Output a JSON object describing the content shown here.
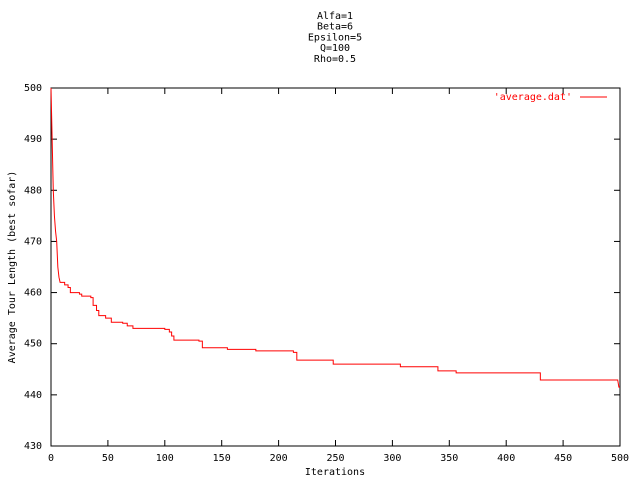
{
  "chart_data": {
    "type": "line",
    "title": [
      "Alfa=1",
      "Beta=6",
      "Epsilon=5",
      "Q=100",
      "Rho=0.5"
    ],
    "xlabel": "Iterations",
    "ylabel": "Average Tour Length (best sofar)",
    "xlim": [
      0,
      500
    ],
    "xticks": [
      0,
      50,
      100,
      150,
      200,
      250,
      300,
      350,
      400,
      450,
      500
    ],
    "ylim": [
      430,
      500
    ],
    "yticks": [
      430,
      440,
      450,
      460,
      470,
      480,
      490,
      500
    ],
    "legend": "top-right",
    "series": [
      {
        "name": "'average.dat'",
        "color": "#ff0000",
        "x": [
          0,
          1,
          2,
          3,
          4,
          5,
          6,
          7,
          8,
          12,
          12,
          15,
          15,
          17,
          17,
          25,
          25,
          27,
          27,
          35,
          35,
          37,
          37,
          40,
          40,
          42,
          42,
          48,
          48,
          53,
          53,
          63,
          63,
          67,
          67,
          72,
          72,
          100,
          100,
          104,
          104,
          106,
          106,
          108,
          108,
          130,
          130,
          133,
          133,
          155,
          155,
          180,
          180,
          213,
          213,
          216,
          216,
          248,
          248,
          307,
          307,
          340,
          340,
          356,
          356,
          430,
          430,
          498,
          499,
          500
        ],
        "values": [
          500,
          490,
          480,
          475,
          472,
          470,
          465,
          463,
          462,
          462,
          461.5,
          461.5,
          461,
          461,
          460,
          460,
          459.7,
          459.7,
          459.3,
          459.3,
          459,
          459,
          457.5,
          457.5,
          456.5,
          456.5,
          455.5,
          455.5,
          455,
          455,
          454.2,
          454.2,
          454,
          454,
          453.5,
          453.5,
          453,
          453,
          452.8,
          452.8,
          452.3,
          452.3,
          451.5,
          451.5,
          450.7,
          450.7,
          450.5,
          450.5,
          449.2,
          449.2,
          448.9,
          448.9,
          448.6,
          448.6,
          448.3,
          448.3,
          446.8,
          446.8,
          446,
          446,
          445.5,
          445.5,
          444.7,
          444.7,
          444.3,
          444.3,
          442.9,
          442.9,
          441.5,
          441.5
        ]
      }
    ]
  }
}
